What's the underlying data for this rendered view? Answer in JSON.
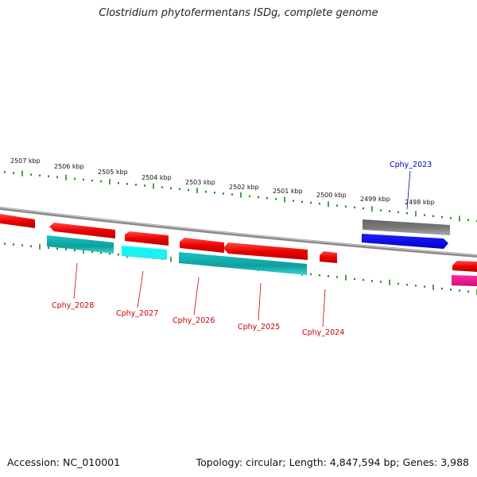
{
  "title": "Clostridium phytofermentans ISDg, complete genome",
  "footer": {
    "accession": "Accession: NC_010001",
    "stats": "Topology: circular; Length: 4,847,594 bp; Genes: 3,988"
  },
  "ruler_labels": [
    "2507 kbp",
    "2506 kbp",
    "2505 kbp",
    "2504 kbp",
    "2503 kbp",
    "2502 kbp",
    "2501 kbp",
    "2500 kbp",
    "2499 kbp",
    "2498 kbp"
  ],
  "colors": {
    "cds": "#ee0000",
    "rna": "#1ab8b8",
    "rna_light": "#00f0f0",
    "dark_gray": "#555555",
    "blue": "#0000ee",
    "magenta": "#e0158a",
    "ticks": "#1a8a1a",
    "label_red": "#cc0000",
    "label_blue": "#0000bb"
  },
  "gene_labels": [
    {
      "text": "Cphy_2028",
      "color": "red"
    },
    {
      "text": "Cphy_2027",
      "color": "red"
    },
    {
      "text": "Cphy_2026",
      "color": "red"
    },
    {
      "text": "Cphy_2025",
      "color": "red"
    },
    {
      "text": "Cphy_2024",
      "color": "red"
    },
    {
      "text": "Cphy_2023",
      "color": "blue"
    }
  ]
}
